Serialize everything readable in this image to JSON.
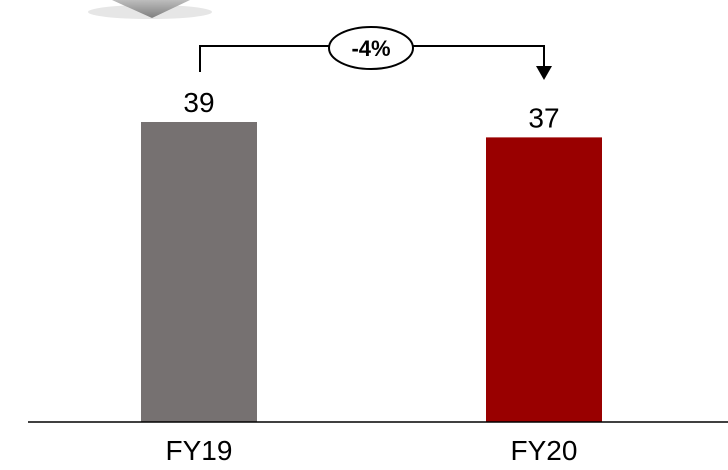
{
  "chart_data": {
    "type": "bar",
    "categories": [
      "FY19",
      "FY20"
    ],
    "values": [
      39,
      37
    ],
    "data_labels": [
      "39",
      "37"
    ],
    "bar_colors": [
      "#767171",
      "#990000"
    ],
    "ylim": [
      0,
      39
    ],
    "grid": false,
    "legend": "none",
    "change_annotation": {
      "label": "-4%",
      "from": "FY19",
      "to": "FY20"
    }
  },
  "colors": {
    "axis": "#000000",
    "decor_shape": "#8c8c8c"
  }
}
